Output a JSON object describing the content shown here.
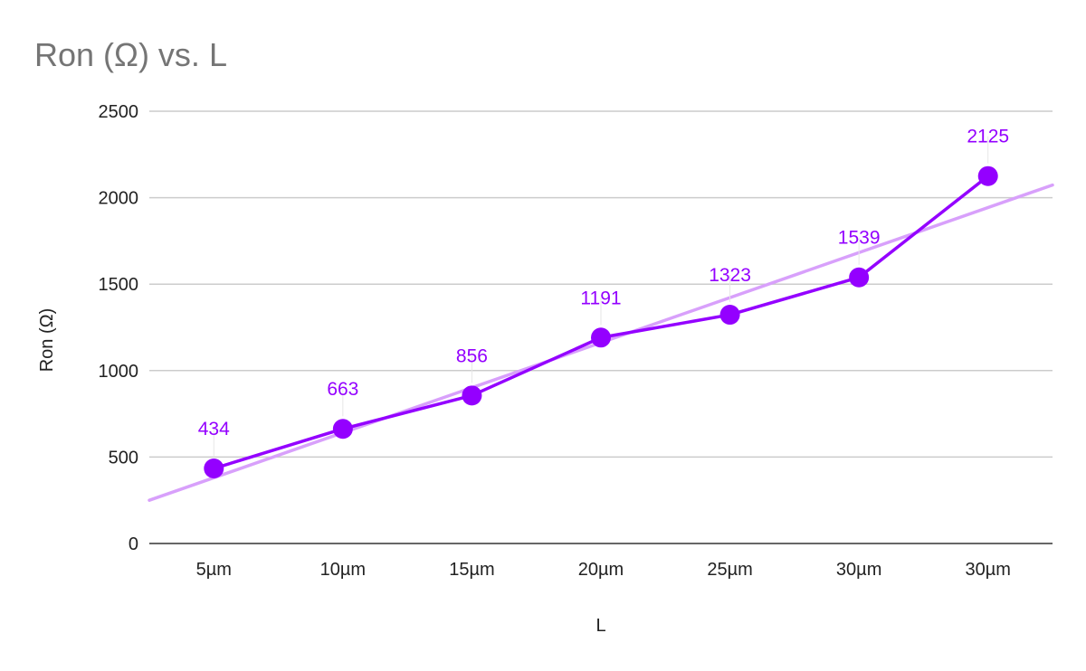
{
  "chart_data": {
    "type": "line",
    "title": "Ron (Ω) vs. L",
    "xlabel": "L",
    "ylabel": "Ron (Ω)",
    "categories": [
      "5µm",
      "10µm",
      "15µm",
      "20µm",
      "25µm",
      "30µm",
      "30µm"
    ],
    "series": [
      {
        "values": [
          434,
          663,
          856,
          1191,
          1323,
          1539,
          2125
        ],
        "color": "#9400ff",
        "data_labels": true
      }
    ],
    "trendline": {
      "type": "linear",
      "color": "#d8a0fb"
    },
    "ylim": [
      0,
      2500
    ],
    "yticks": [
      0,
      500,
      1000,
      1500,
      2000,
      2500
    ],
    "grid": true,
    "legend": "none",
    "colors": {
      "series": "#9400ff",
      "trendline": "#d8a0fb",
      "grid": "#cccccc",
      "axis": "#333333",
      "title": "#757575"
    }
  }
}
